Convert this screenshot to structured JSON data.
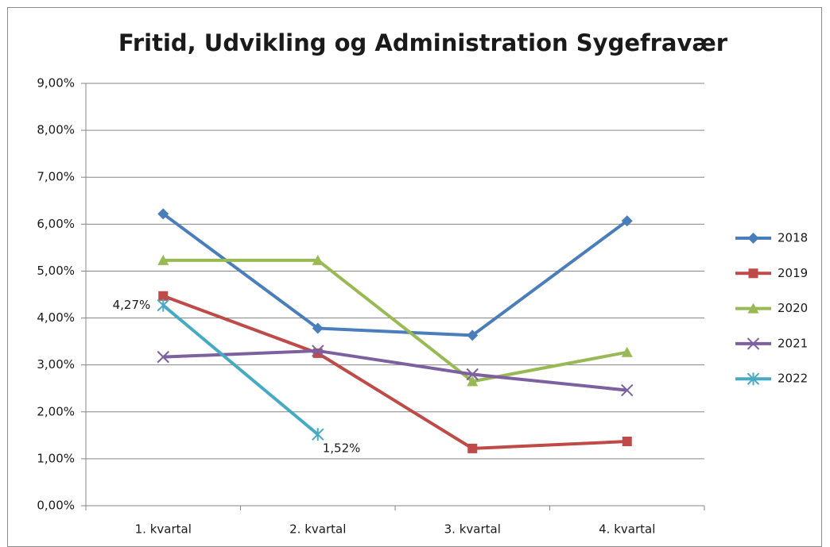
{
  "chart_data": {
    "type": "line",
    "title": "Fritid, Udvikling og Administration  Sygefravær",
    "categories": [
      "1. kvartal",
      "2. kvartal",
      "3. kvartal",
      "4. kvartal"
    ],
    "ylim": [
      0,
      9
    ],
    "yticks": [
      {
        "value": 0,
        "label": "0,00%"
      },
      {
        "value": 1,
        "label": "1,00%"
      },
      {
        "value": 2,
        "label": "2,00%"
      },
      {
        "value": 3,
        "label": "3,00%"
      },
      {
        "value": 4,
        "label": "4,00%"
      },
      {
        "value": 5,
        "label": "5,00%"
      },
      {
        "value": 6,
        "label": "6,00%"
      },
      {
        "value": 7,
        "label": "7,00%"
      },
      {
        "value": 8,
        "label": "8,00%"
      },
      {
        "value": 9,
        "label": "9,00%"
      }
    ],
    "grid": true,
    "legend": "right",
    "series": [
      {
        "name": "2018",
        "color": "#4a7ebb",
        "marker": "diamond",
        "values": [
          6.22,
          3.78,
          3.63,
          6.07
        ]
      },
      {
        "name": "2019",
        "color": "#be4b48",
        "marker": "square",
        "values": [
          4.47,
          3.25,
          1.22,
          1.37
        ]
      },
      {
        "name": "2020",
        "color": "#98b954",
        "marker": "triangle",
        "values": [
          5.23,
          5.23,
          2.65,
          3.27
        ]
      },
      {
        "name": "2021",
        "color": "#7d60a0",
        "marker": "x",
        "values": [
          3.17,
          3.3,
          2.8,
          2.46
        ]
      },
      {
        "name": "2022",
        "color": "#46aac5",
        "marker": "star",
        "values": [
          4.27,
          1.52,
          null,
          null
        ],
        "value_labels": [
          "4,27%",
          "1,52%",
          null,
          null
        ]
      }
    ]
  }
}
